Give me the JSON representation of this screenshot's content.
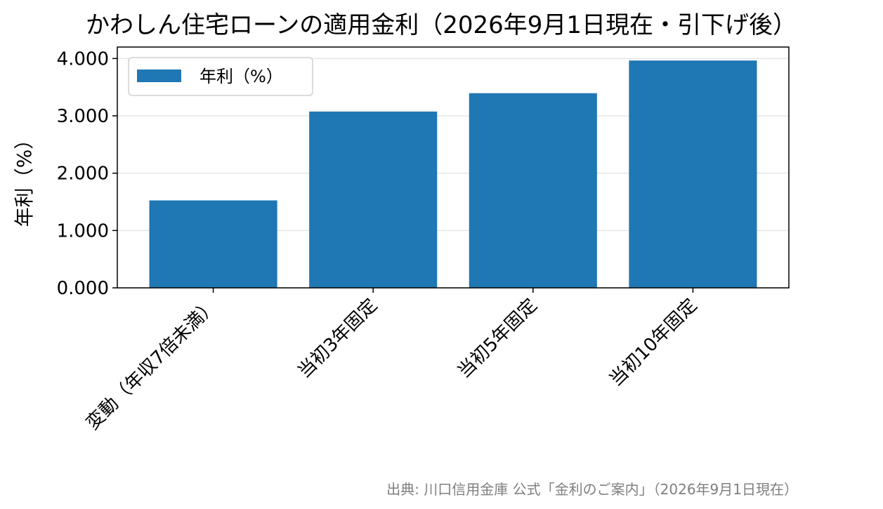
{
  "chart_data": {
    "type": "bar",
    "title": "かわしん住宅ローンの適用金利（2026年9月1日現在・引下げ後）",
    "xlabel": "",
    "ylabel": "年利（%）",
    "categories": [
      "変動（年収7倍未満）",
      "当初3年固定",
      "当初5年固定",
      "当初10年固定"
    ],
    "series": [
      {
        "name": "年利（%）",
        "values": [
          1.525,
          3.075,
          3.395,
          3.965
        ]
      }
    ],
    "ylim": [
      0,
      4.2
    ],
    "yticks": [
      "0.000",
      "1.000",
      "2.000",
      "3.000",
      "4.000"
    ],
    "grid": "horizontal",
    "legend_position": "top-left",
    "bar_color": "#1f77b4",
    "source": "出典: 川口信用金庫 公式「金利のご案内」（2026年9月1日現在）"
  }
}
